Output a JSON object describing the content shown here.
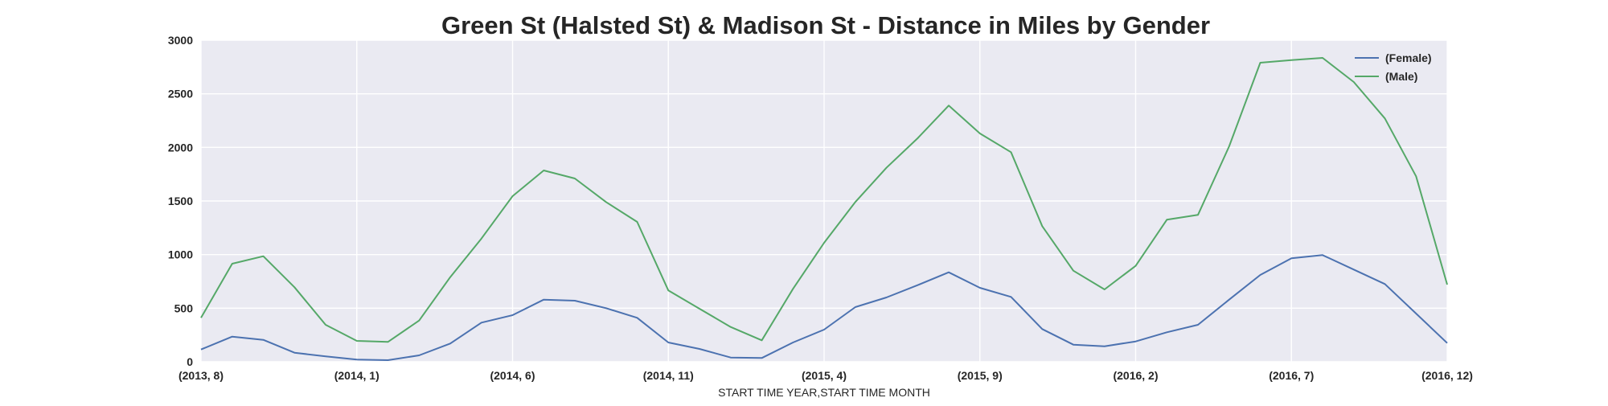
{
  "chart_data": {
    "type": "line",
    "title": "Green St (Halsted St) & Madison St - Distance in Miles by Gender",
    "xlabel": "START TIME YEAR,START TIME MONTH",
    "ylabel": "",
    "ylim": [
      0,
      3000
    ],
    "yticks": [
      0,
      500,
      1000,
      1500,
      2000,
      2500,
      3000
    ],
    "grid": true,
    "legend_position": "top-right",
    "x": [
      "(2013, 8)",
      "(2013, 9)",
      "(2013, 10)",
      "(2013, 11)",
      "(2013, 12)",
      "(2014, 1)",
      "(2014, 2)",
      "(2014, 3)",
      "(2014, 4)",
      "(2014, 5)",
      "(2014, 6)",
      "(2014, 7)",
      "(2014, 8)",
      "(2014, 9)",
      "(2014, 10)",
      "(2014, 11)",
      "(2014, 12)",
      "(2015, 1)",
      "(2015, 2)",
      "(2015, 3)",
      "(2015, 4)",
      "(2015, 5)",
      "(2015, 6)",
      "(2015, 7)",
      "(2015, 8)",
      "(2015, 9)",
      "(2015, 10)",
      "(2015, 11)",
      "(2015, 12)",
      "(2016, 1)",
      "(2016, 2)",
      "(2016, 3)",
      "(2016, 4)",
      "(2016, 5)",
      "(2016, 6)",
      "(2016, 7)",
      "(2016, 8)",
      "(2016, 9)",
      "(2016, 10)",
      "(2016, 11)",
      "(2016, 12)"
    ],
    "xticks": [
      "(2013, 8)",
      "(2014, 1)",
      "(2014, 6)",
      "(2014, 11)",
      "(2015, 4)",
      "(2015, 9)",
      "(2016, 2)",
      "(2016, 7)",
      "(2016, 12)"
    ],
    "series": [
      {
        "name": "(Female)",
        "color": "#4c72b0",
        "values": [
          115,
          235,
          205,
          85,
          50,
          20,
          15,
          60,
          170,
          365,
          435,
          580,
          570,
          500,
          410,
          180,
          120,
          40,
          35,
          180,
          300,
          510,
          600,
          715,
          835,
          690,
          605,
          305,
          160,
          145,
          190,
          275,
          345,
          580,
          810,
          965,
          995,
          860,
          725,
          450,
          175
        ]
      },
      {
        "name": "(Male)",
        "color": "#55a868",
        "values": [
          410,
          915,
          985,
          695,
          345,
          195,
          185,
          385,
          790,
          1150,
          1545,
          1785,
          1710,
          1490,
          1305,
          665,
          495,
          325,
          200,
          680,
          1110,
          1490,
          1810,
          2085,
          2390,
          2130,
          1955,
          1265,
          850,
          675,
          895,
          1325,
          1370,
          2010,
          2790,
          2815,
          2835,
          2610,
          2270,
          1730,
          720
        ]
      }
    ]
  }
}
